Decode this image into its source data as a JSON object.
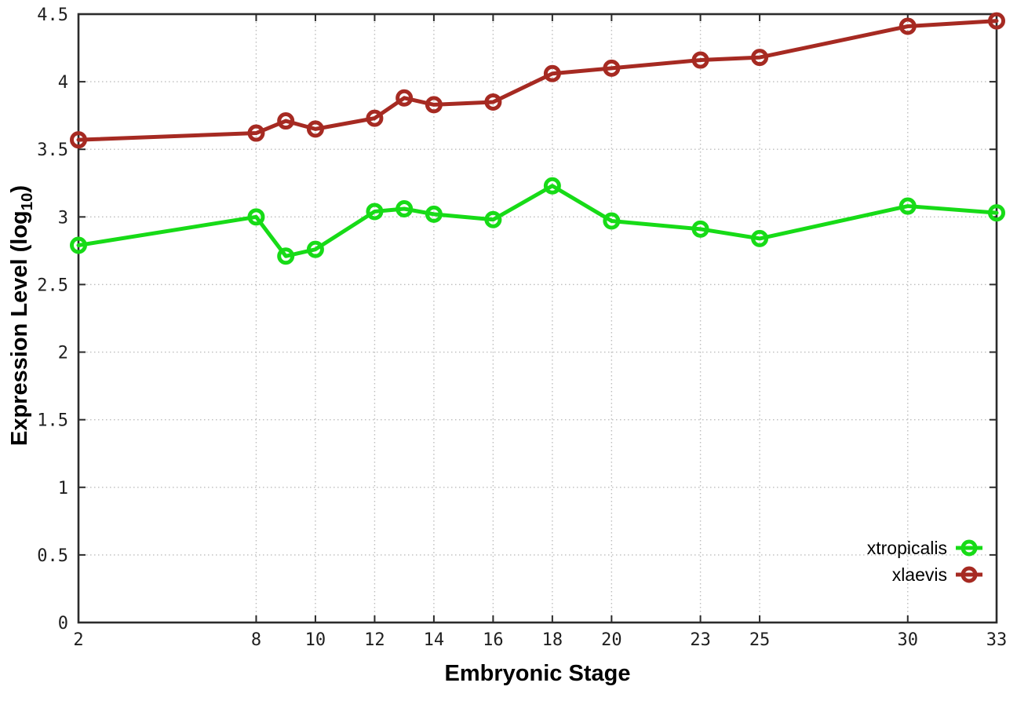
{
  "figure": {
    "background": "#ffffff",
    "border_color": "#2b2b2b",
    "grid_color": "#bdbdbd",
    "tick_label_color": "#1f1f1f"
  },
  "chart_data": {
    "type": "line",
    "title": "",
    "xlabel": "Embryonic Stage",
    "ylabel": "Expression Level (log10)",
    "ylabel_parts": {
      "prefix": "Expression Level (log",
      "sub": "10",
      "suffix": ")"
    },
    "xlim": [
      2,
      33
    ],
    "ylim": [
      0,
      4.5
    ],
    "x_ticks": [
      2,
      8,
      10,
      12,
      14,
      16,
      18,
      20,
      23,
      25,
      30,
      33
    ],
    "y_ticks": [
      0,
      0.5,
      1,
      1.5,
      2,
      2.5,
      3,
      3.5,
      4,
      4.5
    ],
    "y_tick_labels": [
      "0",
      "0.5",
      "1",
      "1.5",
      "2",
      "2.5",
      "3",
      "3.5",
      "4",
      "4.5"
    ],
    "grid": true,
    "legend_position": "bottom-right",
    "x": [
      2,
      8,
      9,
      10,
      12,
      13,
      14,
      16,
      18,
      20,
      23,
      25,
      30,
      33
    ],
    "series": [
      {
        "name": "xtropicalis",
        "color": "#17DB17",
        "marker": "open-circle",
        "values": [
          2.79,
          3.0,
          2.71,
          2.76,
          3.04,
          3.06,
          3.02,
          2.98,
          3.23,
          2.97,
          2.91,
          2.84,
          3.08,
          3.03
        ]
      },
      {
        "name": "xlaevis",
        "color": "#A62A22",
        "marker": "open-circle",
        "values": [
          3.57,
          3.62,
          3.71,
          3.65,
          3.73,
          3.88,
          3.83,
          3.85,
          4.06,
          4.1,
          4.16,
          4.18,
          4.41,
          4.45
        ]
      }
    ]
  }
}
